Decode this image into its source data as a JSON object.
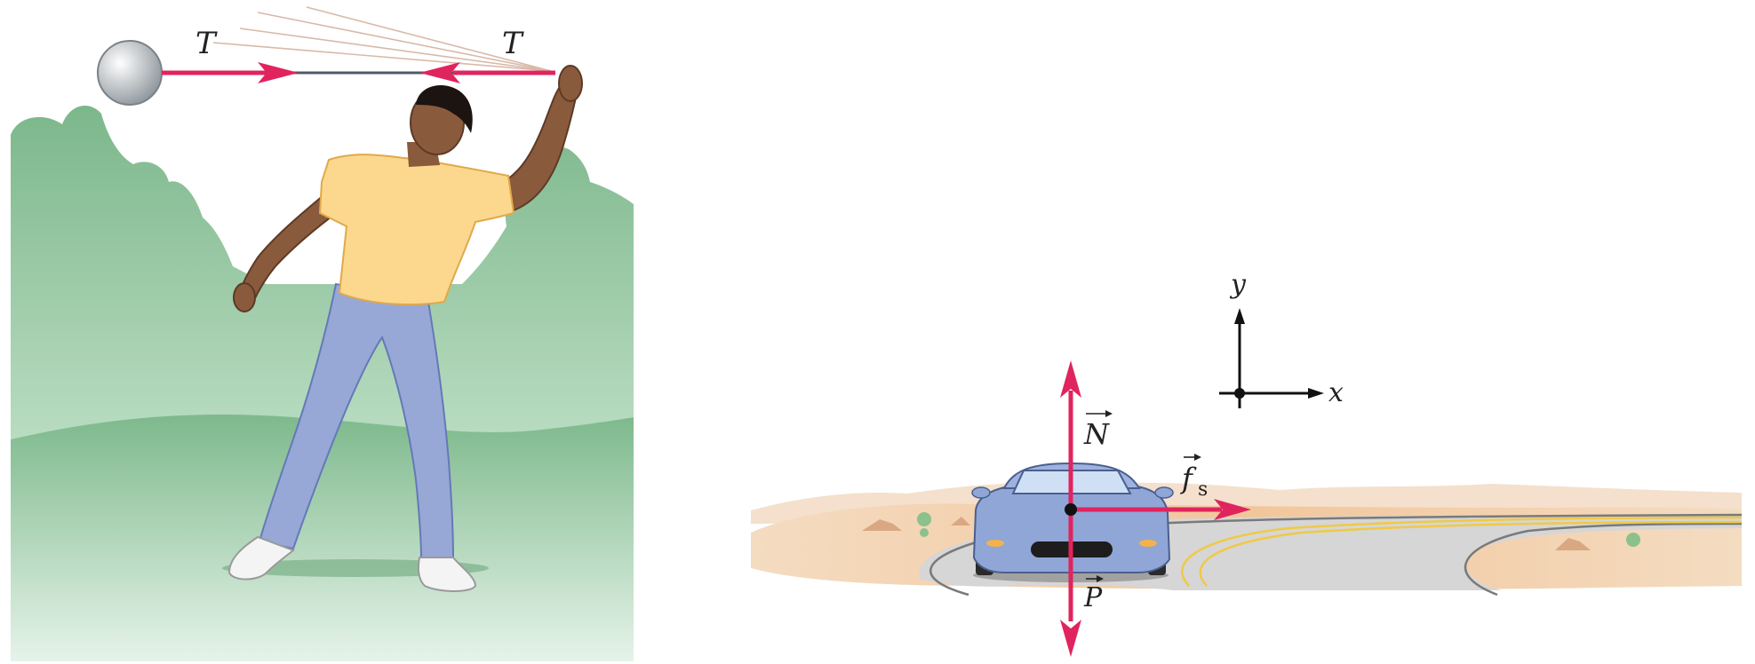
{
  "left_panel": {
    "tension_label_left": "T",
    "tension_label_right": "T"
  },
  "right_panel": {
    "axis_y_label": "y",
    "axis_x_label": "x",
    "normal_label": "N",
    "friction_label": "f",
    "friction_subscript": "s",
    "weight_label": "P"
  },
  "colors": {
    "vector": "#e0245e",
    "foliage": "#7db98c",
    "ground": "#f2c79b",
    "road": "#d4d4d4",
    "car": "#8fa6d6",
    "shirt": "#fbd88e",
    "jeans": "#97a8d6",
    "skin": "#8a5a3c"
  }
}
